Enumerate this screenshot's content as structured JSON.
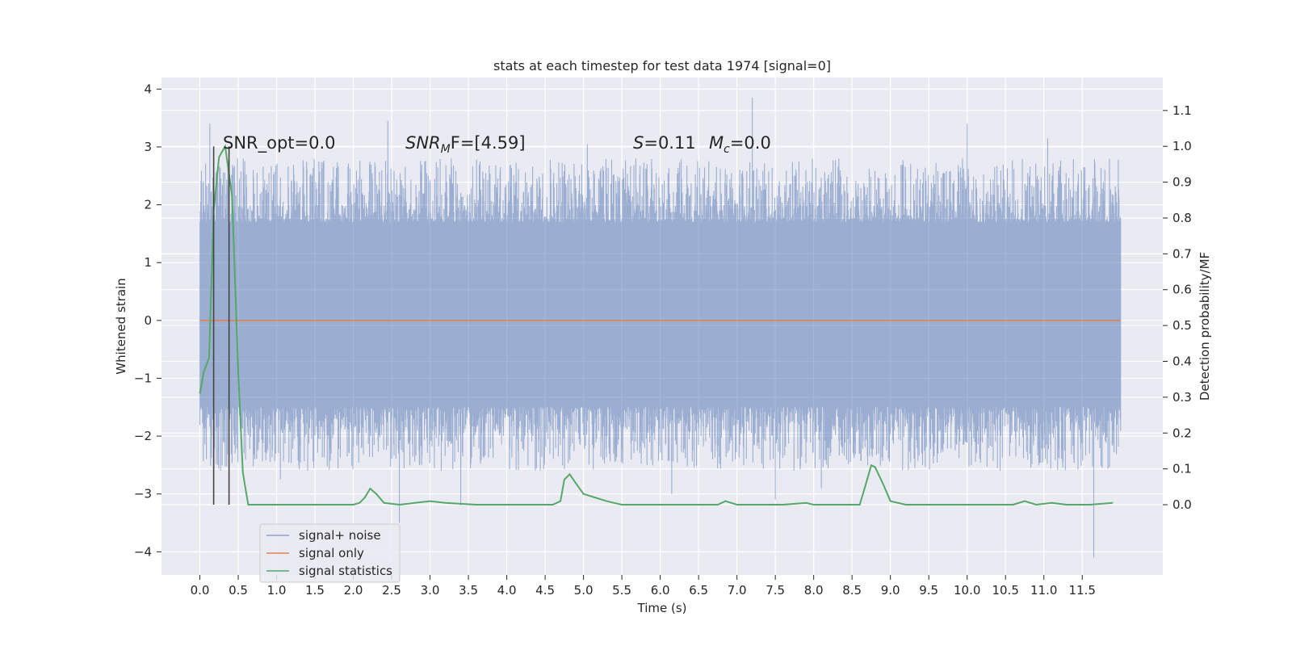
{
  "chart_data": {
    "type": "line",
    "title": "stats at each timestep for test data 1974 [signal=0]",
    "xlabel": "Time (s)",
    "ylabel": "Whitened strain",
    "y2label": "Detection probability/MF",
    "xlim": [
      -0.5,
      12.55
    ],
    "ylim": [
      -4.4,
      4.2
    ],
    "y2lim": [
      -0.196,
      1.192
    ],
    "xticks": [
      0.0,
      0.5,
      1.0,
      1.5,
      2.0,
      2.5,
      3.0,
      3.5,
      4.0,
      4.5,
      5.0,
      5.5,
      6.0,
      6.5,
      7.0,
      7.5,
      8.0,
      8.5,
      9.0,
      9.5,
      10.0,
      10.5,
      11.0,
      11.5
    ],
    "xticklabels": [
      "0.0",
      "0.5",
      "1.0",
      "1.5",
      "2.0",
      "2.5",
      "3.0",
      "3.5",
      "4.0",
      "4.5",
      "5.0",
      "5.5",
      "6.0",
      "6.5",
      "7.0",
      "7.5",
      "8.0",
      "8.5",
      "9.0",
      "9.5",
      "10.0",
      "10.5",
      "11.0",
      "11.5"
    ],
    "yticks": [
      -4,
      -3,
      -2,
      -1,
      0,
      1,
      2,
      3,
      4
    ],
    "yticklabels": [
      "−4",
      "−3",
      "−2",
      "−1",
      "0",
      "1",
      "2",
      "3",
      "4"
    ],
    "y2ticks": [
      0.0,
      0.1,
      0.2,
      0.3,
      0.4,
      0.5,
      0.6,
      0.7,
      0.8,
      0.9,
      1.0,
      1.1
    ],
    "y2ticklabels": [
      "0.0",
      "0.1",
      "0.2",
      "0.3",
      "0.4",
      "0.5",
      "0.6",
      "0.7",
      "0.8",
      "0.9",
      "1.0",
      "1.1"
    ],
    "grid": true,
    "legend_position": "lower-left",
    "series": [
      {
        "name": "signal+ noise",
        "color": "#4c72b0",
        "alpha": 0.5,
        "kind": "noise-band",
        "x_range": [
          0.0,
          12.0
        ],
        "typical_range": [
          -1.5,
          1.7
        ],
        "peaks": [
          {
            "x": 0.13,
            "y": 3.4
          },
          {
            "x": 0.18,
            "y": -2.55
          },
          {
            "x": 1.05,
            "y": -2.75
          },
          {
            "x": 2.45,
            "y": 3.45
          },
          {
            "x": 2.6,
            "y": -3.5
          },
          {
            "x": 3.4,
            "y": -3.2
          },
          {
            "x": 5.05,
            "y": 3.05
          },
          {
            "x": 6.15,
            "y": -3.0
          },
          {
            "x": 7.2,
            "y": 3.85
          },
          {
            "x": 7.5,
            "y": -3.1
          },
          {
            "x": 10.0,
            "y": 3.4
          },
          {
            "x": 11.05,
            "y": 3.15
          },
          {
            "x": 11.65,
            "y": -4.1
          },
          {
            "x": 8.1,
            "y": -2.9
          }
        ]
      },
      {
        "name": "signal only",
        "color": "#dd8452",
        "x": [
          0.0,
          12.0
        ],
        "y": [
          0.0,
          0.0
        ]
      },
      {
        "name": "signal statistics",
        "color": "#55a868",
        "axis": "right",
        "x": [
          0.0,
          0.05,
          0.12,
          0.18,
          0.25,
          0.33,
          0.42,
          0.5,
          0.56,
          0.63,
          1.0,
          1.5,
          2.0,
          2.08,
          2.15,
          2.22,
          2.3,
          2.4,
          2.6,
          2.8,
          3.0,
          3.2,
          3.6,
          4.0,
          4.4,
          4.6,
          4.7,
          4.75,
          4.82,
          4.9,
          5.0,
          5.15,
          5.3,
          5.5,
          5.8,
          6.2,
          6.5,
          6.75,
          6.85,
          7.0,
          7.3,
          7.6,
          7.9,
          8.0,
          8.15,
          8.4,
          8.6,
          8.67,
          8.75,
          8.8,
          8.9,
          9.0,
          9.2,
          9.6,
          10.2,
          10.6,
          10.75,
          10.9,
          11.1,
          11.3,
          11.6,
          11.9
        ],
        "y": [
          0.31,
          0.37,
          0.41,
          0.82,
          0.97,
          1.0,
          0.86,
          0.37,
          0.09,
          0.0,
          0.0,
          0.0,
          0.0,
          0.005,
          0.02,
          0.045,
          0.03,
          0.005,
          0.0,
          0.005,
          0.01,
          0.005,
          0.0,
          0.0,
          0.0,
          0.0,
          0.01,
          0.07,
          0.085,
          0.06,
          0.03,
          0.02,
          0.01,
          0.0,
          0.0,
          0.0,
          0.0,
          0.0,
          0.01,
          0.0,
          0.0,
          0.0,
          0.005,
          0.0,
          0.0,
          0.0,
          0.0,
          0.05,
          0.11,
          0.105,
          0.06,
          0.01,
          0.0,
          0.0,
          0.0,
          0.0,
          0.01,
          0.0,
          0.005,
          0.0,
          0.0,
          0.005
        ]
      }
    ],
    "vlines": [
      0.18,
      0.38
    ],
    "vlines_color": "#444444",
    "vlines_range_y2": [
      0.0,
      1.0
    ],
    "annotations": [
      {
        "text": "SNR_opt=0.0"
      },
      {
        "text": "SNR",
        "sub": "M",
        "after": "F=[4.59]"
      },
      {
        "text": "S",
        "after": "=0.11"
      },
      {
        "text": "M",
        "sub": "c",
        "after": "=0.0"
      }
    ],
    "legend": [
      {
        "label": "signal+ noise",
        "color": "#4c72b0"
      },
      {
        "label": "signal only",
        "color": "#dd8452"
      },
      {
        "label": "signal statistics",
        "color": "#55a868"
      }
    ],
    "background_color": "#eaeaf2",
    "grid_color": "#ffffff"
  }
}
